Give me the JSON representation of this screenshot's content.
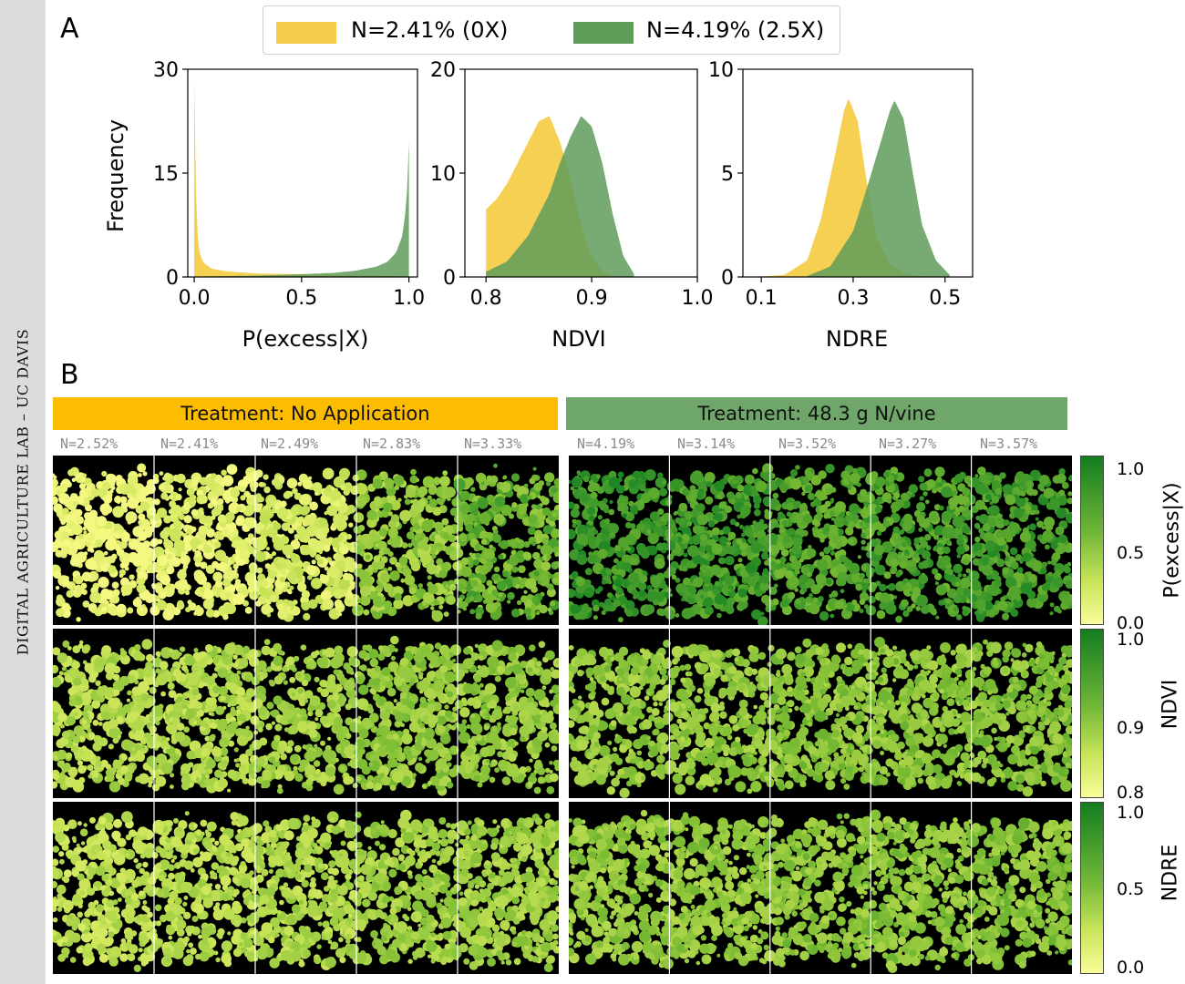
{
  "sidebar": {
    "text": "DIGITAL AGRICULTURE LAB – UC DAVIS"
  },
  "panel_labels": {
    "a": "A",
    "b": "B"
  },
  "legend": [
    {
      "label": "N=2.41% (0X)",
      "color": "#f6cd4a"
    },
    {
      "label": "N=4.19% (2.5X)",
      "color": "#5f9c5a"
    }
  ],
  "colors": {
    "low": "#f6cd4a",
    "high": "#5f9c5a",
    "treat_none": "#fcbd00",
    "treat_app": "#6fa66a"
  },
  "chart_data": [
    {
      "type": "histogram",
      "xlabel": "P(excess|X)",
      "ylabel": "Frequency",
      "xlim": [
        -0.03,
        1.04
      ],
      "ylim": [
        0,
        30
      ],
      "xticks": [
        "0.0",
        "0.5",
        "1.0"
      ],
      "yticks": [
        "0",
        "15",
        "30"
      ],
      "series": [
        {
          "name": "N=2.41% (0X)",
          "x": [
            0.0,
            0.01,
            0.02,
            0.04,
            0.08,
            0.15,
            0.3,
            0.5,
            0.7,
            0.85,
            0.95,
            0.99
          ],
          "y": [
            29,
            9,
            4,
            2.2,
            1.2,
            0.8,
            0.5,
            0.4,
            0.3,
            0.2,
            0.1,
            0.05
          ]
        },
        {
          "name": "N=4.19% (2.5X)",
          "x": [
            0.01,
            0.1,
            0.3,
            0.5,
            0.65,
            0.75,
            0.85,
            0.9,
            0.94,
            0.97,
            0.99,
            1.0
          ],
          "y": [
            0.05,
            0.1,
            0.2,
            0.4,
            0.6,
            0.9,
            1.5,
            2.2,
            3.5,
            6,
            11,
            19.5
          ]
        }
      ]
    },
    {
      "type": "histogram",
      "xlabel": "NDVI",
      "ylabel": "",
      "xlim": [
        0.78,
        1.0
      ],
      "ylim": [
        0,
        20
      ],
      "xticks": [
        "0.8",
        "0.9",
        "1.0"
      ],
      "yticks": [
        "0",
        "10",
        "20"
      ],
      "series": [
        {
          "name": "N=2.41% (0X)",
          "x": [
            0.8,
            0.81,
            0.82,
            0.83,
            0.84,
            0.85,
            0.86,
            0.87,
            0.88,
            0.89,
            0.9,
            0.91,
            0.92
          ],
          "y": [
            6.5,
            7.5,
            9,
            11,
            13,
            15,
            15.5,
            13,
            9.5,
            5,
            2,
            0.5,
            0.1
          ]
        },
        {
          "name": "N=4.19% (2.5X)",
          "x": [
            0.8,
            0.82,
            0.84,
            0.86,
            0.87,
            0.88,
            0.89,
            0.9,
            0.91,
            0.92,
            0.93,
            0.94
          ],
          "y": [
            0.5,
            1.5,
            4,
            8,
            11,
            13.5,
            15.5,
            14.5,
            11,
            6,
            2,
            0.3
          ]
        }
      ]
    },
    {
      "type": "histogram",
      "xlabel": "NDRE",
      "ylabel": "",
      "xlim": [
        0.06,
        0.56
      ],
      "ylim": [
        0,
        10
      ],
      "xticks": [
        "0.1",
        "0.3",
        "0.5"
      ],
      "yticks": [
        "0",
        "5",
        "10"
      ],
      "series": [
        {
          "name": "N=2.41% (0X)",
          "x": [
            0.1,
            0.15,
            0.2,
            0.23,
            0.26,
            0.28,
            0.29,
            0.31,
            0.33,
            0.35,
            0.38,
            0.42,
            0.46
          ],
          "y": [
            0.02,
            0.1,
            0.8,
            2.8,
            5.8,
            8,
            8.6,
            7.5,
            4.5,
            2,
            0.6,
            0.1,
            0.02
          ]
        },
        {
          "name": "N=4.19% (2.5X)",
          "x": [
            0.2,
            0.25,
            0.3,
            0.33,
            0.36,
            0.38,
            0.39,
            0.41,
            0.43,
            0.45,
            0.48,
            0.51
          ],
          "y": [
            0.05,
            0.5,
            2.2,
            4.3,
            6.5,
            8,
            8.5,
            7.6,
            5,
            2.5,
            0.8,
            0.1
          ]
        }
      ]
    }
  ],
  "treatments": [
    {
      "label": "Treatment: No Application",
      "n_labels": [
        "N=2.52%",
        "N=2.41%",
        "N=2.49%",
        "N=2.83%",
        "N=3.33%"
      ]
    },
    {
      "label": "Treatment: 48.3  g N/vine",
      "n_labels": [
        "N=4.19%",
        "N=3.14%",
        "N=3.52%",
        "N=3.27%",
        "N=3.57%"
      ]
    }
  ],
  "colorbars": [
    {
      "title": "P(excess|X)",
      "ticks": [
        "1.0",
        "0.5",
        "0.0"
      ]
    },
    {
      "title": "NDVI",
      "ticks": [
        "1.0",
        "0.9",
        "0.8"
      ]
    },
    {
      "title": "NDRE",
      "ticks": [
        "1.0",
        "0.5",
        "0.0"
      ]
    }
  ]
}
